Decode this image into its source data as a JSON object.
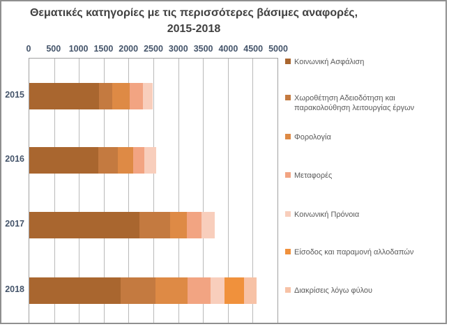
{
  "title": {
    "line1": "Θεματικές κατηγορίες με τις περισσότερες βάσιμες αναφορές,",
    "line2": "2015-2018"
  },
  "chart_data": {
    "type": "bar",
    "orientation": "horizontal",
    "stacked": true,
    "title": "Θεματικές κατηγορίες με τις περισσότερες βάσιμες αναφορές, 2015-2018",
    "xlabel": "",
    "ylabel": "",
    "grid": true,
    "legend_position": "right",
    "x_axis": {
      "min": 0,
      "max": 5000,
      "tick_step": 500,
      "ticks": [
        "0",
        "500",
        "1000",
        "1500",
        "2000",
        "2500",
        "3000",
        "3500",
        "4000",
        "4500",
        "5000"
      ]
    },
    "categories": [
      "2015",
      "2016",
      "2017",
      "2018"
    ],
    "series": [
      {
        "name": "Κοινωνική Ασφάλιση",
        "color": "#A9662F",
        "values": [
          1390,
          1385,
          2210,
          1825
        ]
      },
      {
        "name": "Χωροθέτηση Αδειοδότηση και παρακολούθηση λειτουργίας έργων",
        "color": "#C47A40",
        "values": [
          270,
          395,
          615,
          700
        ]
      },
      {
        "name": "Φορολογία",
        "color": "#DE8A45",
        "values": [
          350,
          300,
          330,
          650
        ]
      },
      {
        "name": "Μεταφορές",
        "color": "#F2A482",
        "values": [
          265,
          225,
          300,
          450
        ]
      },
      {
        "name": "Κοινωνική Πρόνοια",
        "color": "#F8CEBC",
        "values": [
          200,
          240,
          260,
          280
        ]
      },
      {
        "name": "Είσοδος και παραμονή αλλοδαπών",
        "color": "#F0913C",
        "values": [
          0,
          0,
          0,
          395
        ]
      },
      {
        "name": "Διακρίσεις λόγω φύλου",
        "color": "#F7C2A6",
        "values": [
          0,
          0,
          0,
          255
        ]
      }
    ],
    "totals": [
      2475,
      2545,
      3715,
      4555
    ]
  },
  "colors": {
    "title_text": "#404040",
    "axis_text": "#44546A",
    "legend_text": "#595959",
    "gridline": "#b9b9b9",
    "plot_border": "#a0a0a0",
    "chart_frame": "#8f8f8f",
    "background": "#ffffff"
  }
}
